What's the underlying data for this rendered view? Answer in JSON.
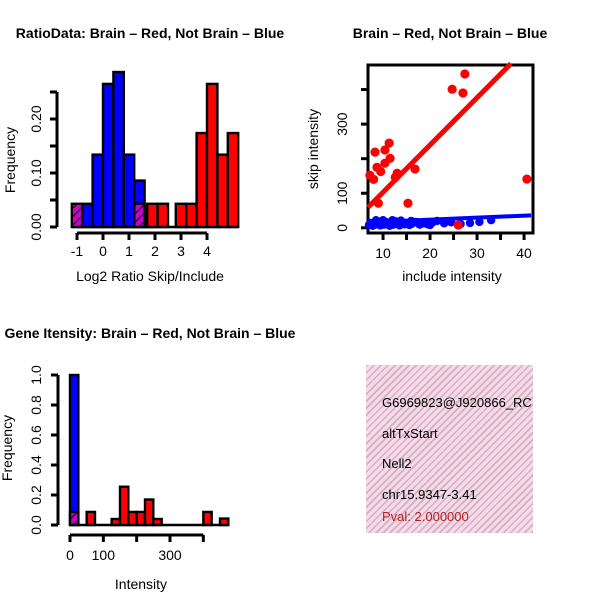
{
  "colors": {
    "red": "#ff0000",
    "blue": "#0000ff",
    "purple": "#cc00cc",
    "purple_hatch_line": "#14042a",
    "axis": "#000000",
    "pink_background": "#f8d7ef",
    "pval_text": "#b22222"
  },
  "chart_data": [
    {
      "id": "hist_ratio",
      "type": "bar",
      "title": "RatioData: Brain – Red, Not Brain – Blue",
      "xlabel": "Log2 Ratio Skip/Include",
      "ylabel": "Frequency",
      "legend_note": "Brain = red bars, Not Brain = blue bars, overlap = hatched purple",
      "xlim": [
        -1.8,
        5.5
      ],
      "ylim": [
        0,
        0.25
      ],
      "x_ticks": [
        {
          "v": -1,
          "label": "-1"
        },
        {
          "v": 0,
          "label": "0"
        },
        {
          "v": 1,
          "label": "1"
        },
        {
          "v": 2,
          "label": "2"
        },
        {
          "v": 3,
          "label": "3"
        },
        {
          "v": 4,
          "label": "4"
        }
      ],
      "y_ticks": [
        {
          "v": 0,
          "label": "0.00"
        },
        {
          "v": 0.05
        },
        {
          "v": 0.1,
          "label": "0.10"
        },
        {
          "v": 0.15
        },
        {
          "v": 0.2,
          "label": "0.20"
        },
        {
          "v": 0.25
        }
      ],
      "baseline": [
        -1.2,
        5.2
      ],
      "bars": [
        {
          "x0": -0.8,
          "x1": -0.4,
          "h": 0.043,
          "c": "blue"
        },
        {
          "x0": -0.4,
          "x1": 0.0,
          "h": 0.134,
          "c": "blue"
        },
        {
          "x0": 0.0,
          "x1": 0.4,
          "h": 0.265,
          "c": "blue"
        },
        {
          "x0": 0.4,
          "x1": 0.8,
          "h": 0.287,
          "c": "blue"
        },
        {
          "x0": 0.8,
          "x1": 1.2,
          "h": 0.134,
          "c": "blue"
        },
        {
          "x0": 1.2,
          "x1": 1.6,
          "h": 0.086,
          "c": "blue"
        },
        {
          "x0": 1.6,
          "x1": 2.0,
          "h": 0.02,
          "c": "blue"
        },
        {
          "x0": 1.7,
          "x1": 2.1,
          "h": 0.043,
          "c": "red"
        },
        {
          "x0": 2.1,
          "x1": 2.5,
          "h": 0.043,
          "c": "red"
        },
        {
          "x0": 2.8,
          "x1": 3.2,
          "h": 0.043,
          "c": "red"
        },
        {
          "x0": 3.2,
          "x1": 3.6,
          "h": 0.043,
          "c": "red"
        },
        {
          "x0": 3.6,
          "x1": 4.0,
          "h": 0.174,
          "c": "red"
        },
        {
          "x0": 4.0,
          "x1": 4.4,
          "h": 0.265,
          "c": "red"
        },
        {
          "x0": 4.4,
          "x1": 4.8,
          "h": 0.134,
          "c": "red"
        },
        {
          "x0": 4.8,
          "x1": 5.2,
          "h": 0.174,
          "c": "red"
        },
        {
          "x0": -1.2,
          "x1": -0.8,
          "h": 0.043,
          "c": "overlap"
        },
        {
          "x0": 1.2,
          "x1": 1.6,
          "h": 0.043,
          "c": "overlap"
        }
      ]
    },
    {
      "id": "scatter_intensity",
      "type": "scatter",
      "title": "Brain – Red, Not Brain – Blue",
      "xlabel": "include intensity",
      "ylabel": "skip intensity",
      "xlim": [
        6.8,
        41.9
      ],
      "ylim": [
        -15,
        471
      ],
      "x_ticks": [
        {
          "v": 10,
          "label": "10"
        },
        {
          "v": 15
        },
        {
          "v": 20,
          "label": "20"
        },
        {
          "v": 25
        },
        {
          "v": 30,
          "label": "30"
        },
        {
          "v": 35
        },
        {
          "v": 40,
          "label": "40"
        }
      ],
      "y_ticks": [
        {
          "v": 0,
          "label": "0"
        },
        {
          "v": 100,
          "label": "100"
        },
        {
          "v": 200
        },
        {
          "v": 300,
          "label": "300"
        },
        {
          "v": 400
        }
      ],
      "red_points": [
        [
          27.4,
          445
        ],
        [
          24.7,
          401
        ],
        [
          27.0,
          390
        ],
        [
          11.3,
          245
        ],
        [
          10.4,
          225
        ],
        [
          8.3,
          219
        ],
        [
          11.5,
          201
        ],
        [
          10.4,
          187
        ],
        [
          8.7,
          175
        ],
        [
          7.2,
          152
        ],
        [
          12.6,
          146
        ],
        [
          16.8,
          170
        ],
        [
          8.0,
          140
        ],
        [
          13.0,
          158
        ],
        [
          9.5,
          163
        ],
        [
          9.0,
          71
        ],
        [
          15.3,
          71
        ],
        [
          40.6,
          141
        ],
        [
          26.0,
          8
        ]
      ],
      "blue_points": [
        [
          7,
          8
        ],
        [
          7.3,
          14
        ],
        [
          7.8,
          6
        ],
        [
          8.2,
          16
        ],
        [
          8.6,
          10
        ],
        [
          9,
          18
        ],
        [
          9.4,
          7
        ],
        [
          9.8,
          13
        ],
        [
          10.2,
          9
        ],
        [
          10.6,
          17
        ],
        [
          11,
          11
        ],
        [
          11.4,
          6
        ],
        [
          11.8,
          15
        ],
        [
          12.2,
          9
        ],
        [
          12.6,
          19
        ],
        [
          13,
          12
        ],
        [
          13.5,
          7
        ],
        [
          14,
          16
        ],
        [
          14.5,
          10
        ],
        [
          15,
          14
        ],
        [
          15.6,
          8
        ],
        [
          16.2,
          12
        ],
        [
          17,
          17
        ],
        [
          17.8,
          9
        ],
        [
          18.6,
          13
        ],
        [
          19.5,
          10
        ],
        [
          20.5,
          15
        ],
        [
          21.5,
          20
        ],
        [
          23,
          13
        ],
        [
          24.5,
          16
        ],
        [
          26.5,
          11
        ],
        [
          28.5,
          14
        ],
        [
          30.5,
          17
        ],
        [
          33,
          22
        ],
        [
          20,
          8
        ],
        [
          16,
          20
        ],
        [
          12,
          22
        ],
        [
          10,
          22
        ],
        [
          8.5,
          22
        ],
        [
          13.8,
          21
        ]
      ],
      "red_line": {
        "x": [
          6.8,
          37.2
        ],
        "y": [
          59,
          475
        ]
      },
      "blue_line": {
        "x": [
          6.8,
          41.5
        ],
        "y": [
          16,
          36
        ]
      }
    },
    {
      "id": "hist_gene_intensity",
      "type": "bar",
      "title": "Gene Itensity: Brain – Red, Not Brain – Blue",
      "xlabel": "Intensity",
      "ylabel": "Frequency",
      "legend_note": "Brain = red bars, Not Brain = blue bars, overlap = hatched purple",
      "xlim": [
        0,
        475
      ],
      "ylim": [
        0,
        1.0
      ],
      "x_ticks": [
        {
          "v": 0,
          "label": "0"
        },
        {
          "v": 100,
          "label": "100"
        },
        {
          "v": 200
        },
        {
          "v": 300,
          "label": "300"
        },
        {
          "v": 400
        }
      ],
      "y_ticks": [
        {
          "v": 0,
          "label": "0.0"
        },
        {
          "v": 0.2,
          "label": "0.2"
        },
        {
          "v": 0.4,
          "label": "0.4"
        },
        {
          "v": 0.6,
          "label": "0.6"
        },
        {
          "v": 0.8,
          "label": "0.8"
        },
        {
          "v": 1,
          "label": "1.0"
        }
      ],
      "baseline": [
        0,
        475
      ],
      "bars": [
        {
          "x0": 0,
          "x1": 25,
          "h": 1.0,
          "c": "blue"
        },
        {
          "x0": 50,
          "x1": 75,
          "h": 0.087,
          "c": "red"
        },
        {
          "x0": 125,
          "x1": 150,
          "h": 0.04,
          "c": "red"
        },
        {
          "x0": 150,
          "x1": 175,
          "h": 0.255,
          "c": "red"
        },
        {
          "x0": 175,
          "x1": 200,
          "h": 0.087,
          "c": "red"
        },
        {
          "x0": 200,
          "x1": 225,
          "h": 0.087,
          "c": "red"
        },
        {
          "x0": 225,
          "x1": 250,
          "h": 0.17,
          "c": "red"
        },
        {
          "x0": 250,
          "x1": 275,
          "h": 0.04,
          "c": "red"
        },
        {
          "x0": 400,
          "x1": 425,
          "h": 0.087,
          "c": "red"
        },
        {
          "x0": 450,
          "x1": 475,
          "h": 0.043,
          "c": "red"
        },
        {
          "x0": 0,
          "x1": 25,
          "h": 0.087,
          "c": "overlap"
        }
      ]
    }
  ],
  "info_panel": {
    "line1": "G6969823@J920866_RC",
    "line2": "altTxStart",
    "line3": "Nell2",
    "line4": "chr15.9347-3.41",
    "line5": "Pval: 2.000000"
  }
}
